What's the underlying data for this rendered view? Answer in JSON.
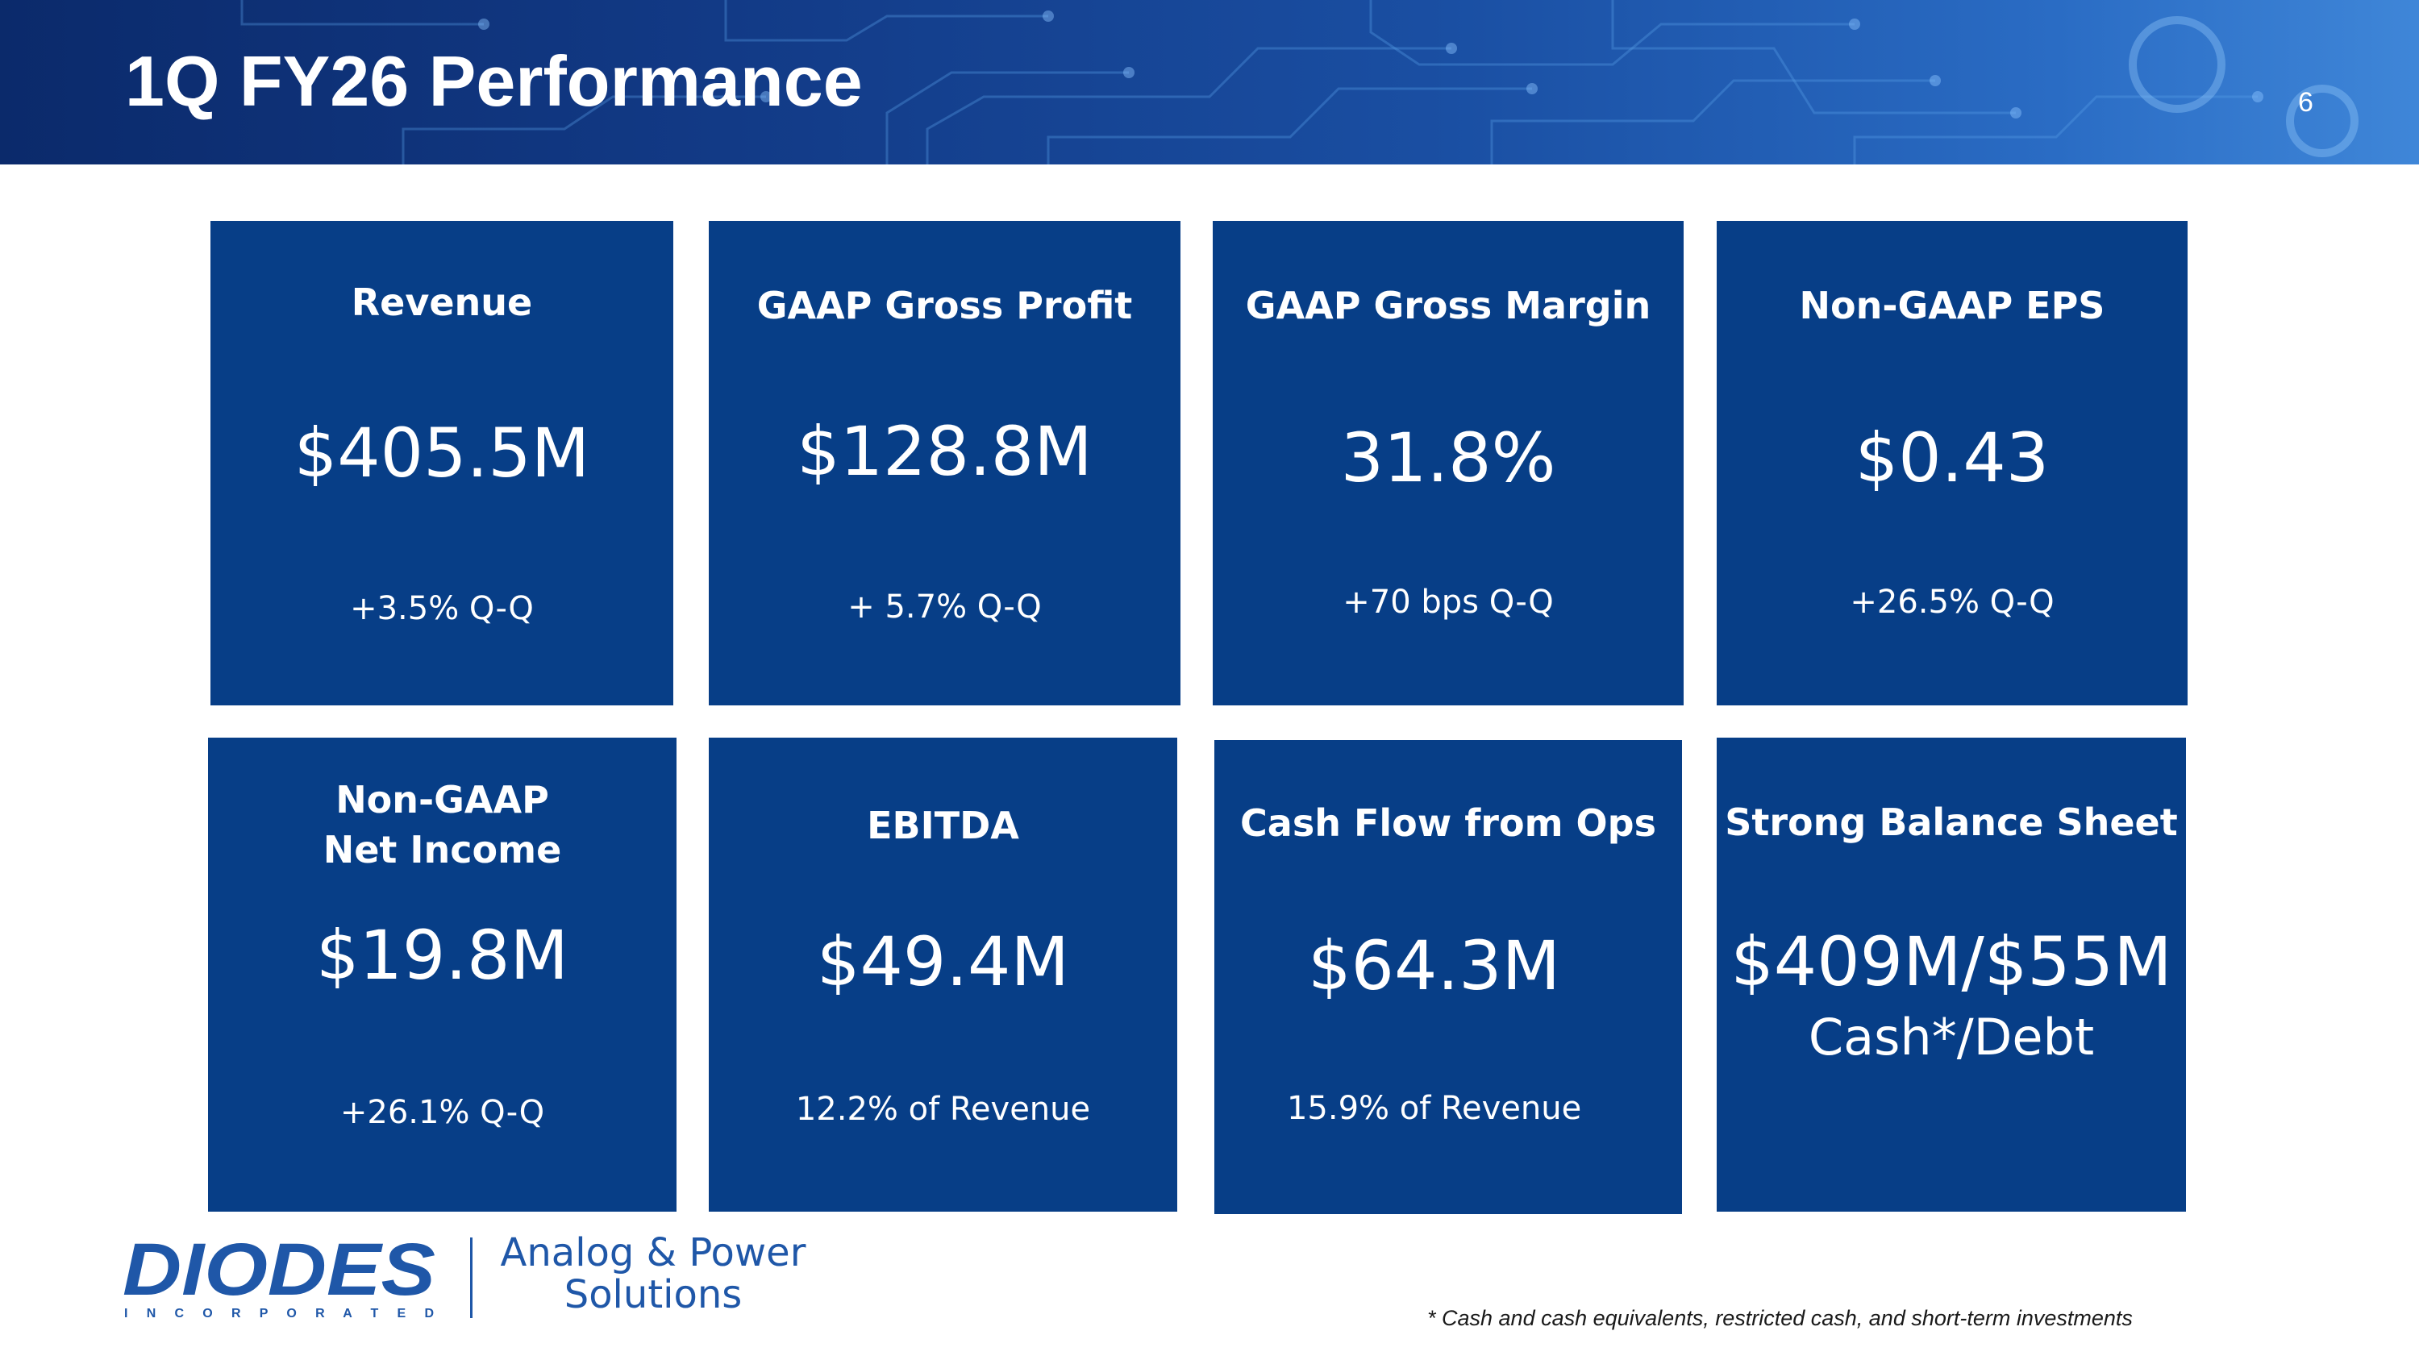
{
  "header": {
    "title": "1Q FY26 Performance",
    "page_number": "6"
  },
  "tiles": [
    {
      "label": "Revenue",
      "value": "$405.5M",
      "sub": "+3.5% Q-Q"
    },
    {
      "label": "GAAP Gross Profit",
      "value": "$128.8M",
      "sub": "+ 5.7% Q-Q"
    },
    {
      "label": "GAAP Gross Margin",
      "value": "31.8%",
      "sub": "+70 bps Q-Q"
    },
    {
      "label": "Non-GAAP EPS",
      "value": "$0.43",
      "sub": "+26.5% Q-Q"
    },
    {
      "label": "Non-GAAP\nNet Income",
      "value": "$19.8M",
      "sub": "+26.1% Q-Q"
    },
    {
      "label": "EBITDA",
      "value": "$49.4M",
      "sub": "12.2% of Revenue"
    },
    {
      "label": "Cash Flow from Ops",
      "value": "$64.3M",
      "sub": "15.9% of Revenue"
    },
    {
      "label": "Strong Balance Sheet",
      "value": "$409M/$55M",
      "sub": "Cash*/Debt"
    }
  ],
  "footer": {
    "logo_text": "DIODES",
    "logo_subtext": "I N C O R P O R A T E D",
    "tagline_line1": "Analog & Power",
    "tagline_line2": "Solutions",
    "footnote": "* Cash and cash equivalents, restricted cash, and short-term investments"
  },
  "colors": {
    "tile_blue": "#073e87",
    "brand_blue": "#1f57a8",
    "header_dark": "#0b2a6b"
  }
}
